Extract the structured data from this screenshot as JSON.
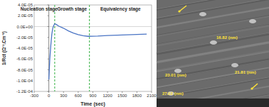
{
  "chart_data": {
    "type": "line",
    "y_label": "1/Rct (Ω⁻¹.Cm⁻²)",
    "x_label": "Time (sec)",
    "x": [
      0,
      20,
      40,
      60,
      80,
      100,
      120,
      150,
      200,
      300,
      400,
      500,
      600,
      700,
      800,
      1000,
      1200,
      1500,
      1800,
      2000
    ],
    "series": [
      {
        "name": "1/Rct",
        "color": "#4a74c4",
        "values": [
          -9.8e-05,
          -6e-05,
          -3.5e-05,
          -1.5e-05,
          -3e-06,
          2e-06,
          5e-06,
          4e-06,
          1e-06,
          -3e-06,
          -8e-06,
          -1.2e-05,
          -1.5e-05,
          -1.7e-05,
          -1.8e-05,
          -1.75e-05,
          -1.65e-05,
          -1.55e-05,
          -1.45e-05,
          -1.4e-05
        ]
      }
    ],
    "xlim": [
      -300,
      2100
    ],
    "xticks": [
      -300,
      0,
      300,
      600,
      900,
      1200,
      1500,
      1800,
      2100
    ],
    "ylim": [
      -0.00012,
      4e-05
    ],
    "yticks": [
      {
        "value": 4e-05,
        "label": "4.0E-05"
      },
      {
        "value": 2e-05,
        "label": "2.0E-05"
      },
      {
        "value": 0,
        "label": "0.0E+00"
      },
      {
        "value": -2e-05,
        "label": "-2.0E-05"
      },
      {
        "value": -4e-05,
        "label": "-4.0E-05"
      },
      {
        "value": -6e-05,
        "label": "-6.0E-05"
      },
      {
        "value": -8e-05,
        "label": "-8.0E-05"
      },
      {
        "value": -0.0001,
        "label": "-1.0E-04"
      },
      {
        "value": -0.00012,
        "label": "-1.2E-04"
      }
    ],
    "grid": false,
    "stage_lines": [
      120,
      830
    ],
    "stage_line_color": "#33b040",
    "annotations": [
      "Nucleation stage",
      "Growth stage",
      "Equivalency stage"
    ]
  },
  "image": {
    "labels": [
      "16.82 (nm)",
      "23.01 (nm)",
      "21.81 (nm)",
      "27.02 (nm)"
    ]
  }
}
